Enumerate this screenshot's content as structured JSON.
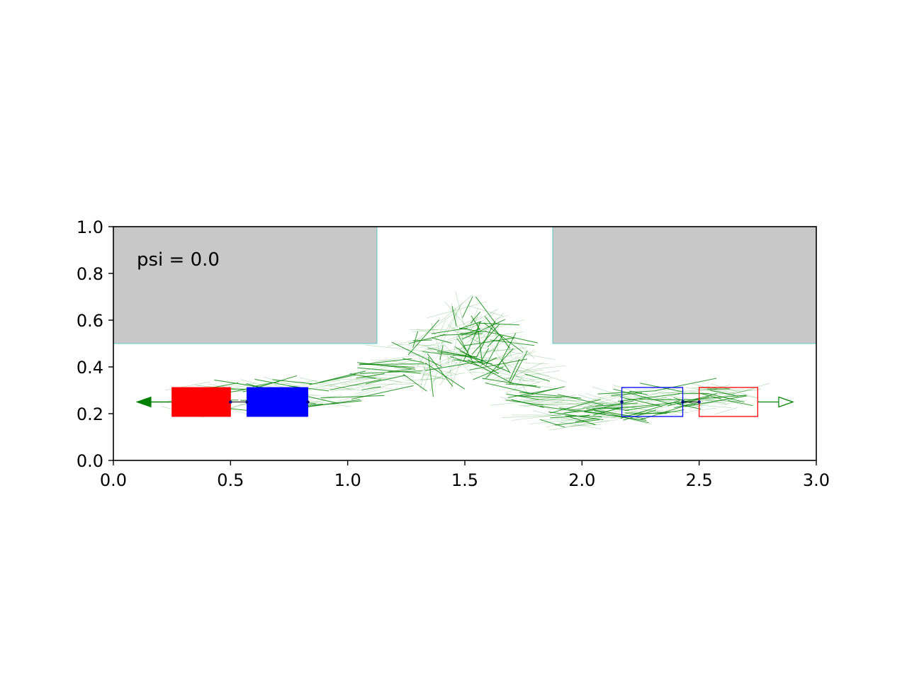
{
  "chart_data": {
    "type": "scatter",
    "annotation": "psi = 0.0",
    "xlim": [
      0.0,
      3.0
    ],
    "ylim": [
      0.0,
      1.0
    ],
    "x_ticks": [
      0.0,
      0.5,
      1.0,
      1.5,
      2.0,
      2.5,
      3.0
    ],
    "x_tick_labels": [
      "0.0",
      "0.5",
      "1.0",
      "1.5",
      "2.0",
      "2.5",
      "3.0"
    ],
    "y_ticks": [
      0.0,
      0.2,
      0.4,
      0.6,
      0.8,
      1.0
    ],
    "y_tick_labels": [
      "0.0",
      "0.2",
      "0.4",
      "0.6",
      "0.8",
      "1.0"
    ],
    "grid": false,
    "colors": {
      "obstacle_fill": "#c8c8c8",
      "obstacle_edge": "#5ec8c8",
      "trajectory": "#008000",
      "start_trailer": "#ff0000",
      "start_tractor": "#0000ff",
      "goal_trailer": "#ff0000",
      "goal_tractor": "#0000ff",
      "hitch": "#000000"
    },
    "obstacles": [
      {
        "x": [
          0.0,
          1.125
        ],
        "y": [
          0.5,
          1.0
        ]
      },
      {
        "x": [
          1.875,
          3.0
        ],
        "y": [
          0.5,
          1.0
        ]
      }
    ],
    "start_vehicle": {
      "trailer": {
        "x": [
          0.25,
          0.5
        ],
        "y": [
          0.188,
          0.312
        ]
      },
      "tractor": {
        "x": [
          0.57,
          0.83
        ],
        "y": [
          0.188,
          0.312
        ]
      },
      "hitch_points": [
        [
          0.5,
          0.25
        ],
        [
          0.57,
          0.25
        ],
        [
          0.83,
          0.25
        ]
      ],
      "arrow_start": [
        0.25,
        0.25
      ],
      "arrow_end": [
        0.1,
        0.25
      ]
    },
    "goal_vehicle": {
      "tractor": {
        "x": [
          2.17,
          2.43
        ],
        "y": [
          0.188,
          0.312
        ]
      },
      "trailer": {
        "x": [
          2.5,
          2.75
        ],
        "y": [
          0.188,
          0.312
        ]
      },
      "hitch_points": [
        [
          2.17,
          0.25
        ],
        [
          2.43,
          0.25
        ],
        [
          2.5,
          0.25
        ]
      ],
      "arrow_start": [
        2.75,
        0.25
      ],
      "arrow_end": [
        2.9,
        0.25
      ]
    },
    "trajectory_path": [
      [
        0.35,
        0.26
      ],
      [
        0.55,
        0.27
      ],
      [
        0.8,
        0.28
      ],
      [
        1.0,
        0.3
      ],
      [
        1.15,
        0.36
      ],
      [
        1.3,
        0.42
      ],
      [
        1.4,
        0.47
      ],
      [
        1.48,
        0.52
      ],
      [
        1.55,
        0.56
      ],
      [
        1.62,
        0.5
      ],
      [
        1.7,
        0.4
      ],
      [
        1.78,
        0.3
      ],
      [
        1.88,
        0.22
      ],
      [
        2.0,
        0.2
      ],
      [
        2.15,
        0.23
      ],
      [
        2.3,
        0.26
      ],
      [
        2.5,
        0.27
      ],
      [
        2.65,
        0.27
      ]
    ]
  }
}
